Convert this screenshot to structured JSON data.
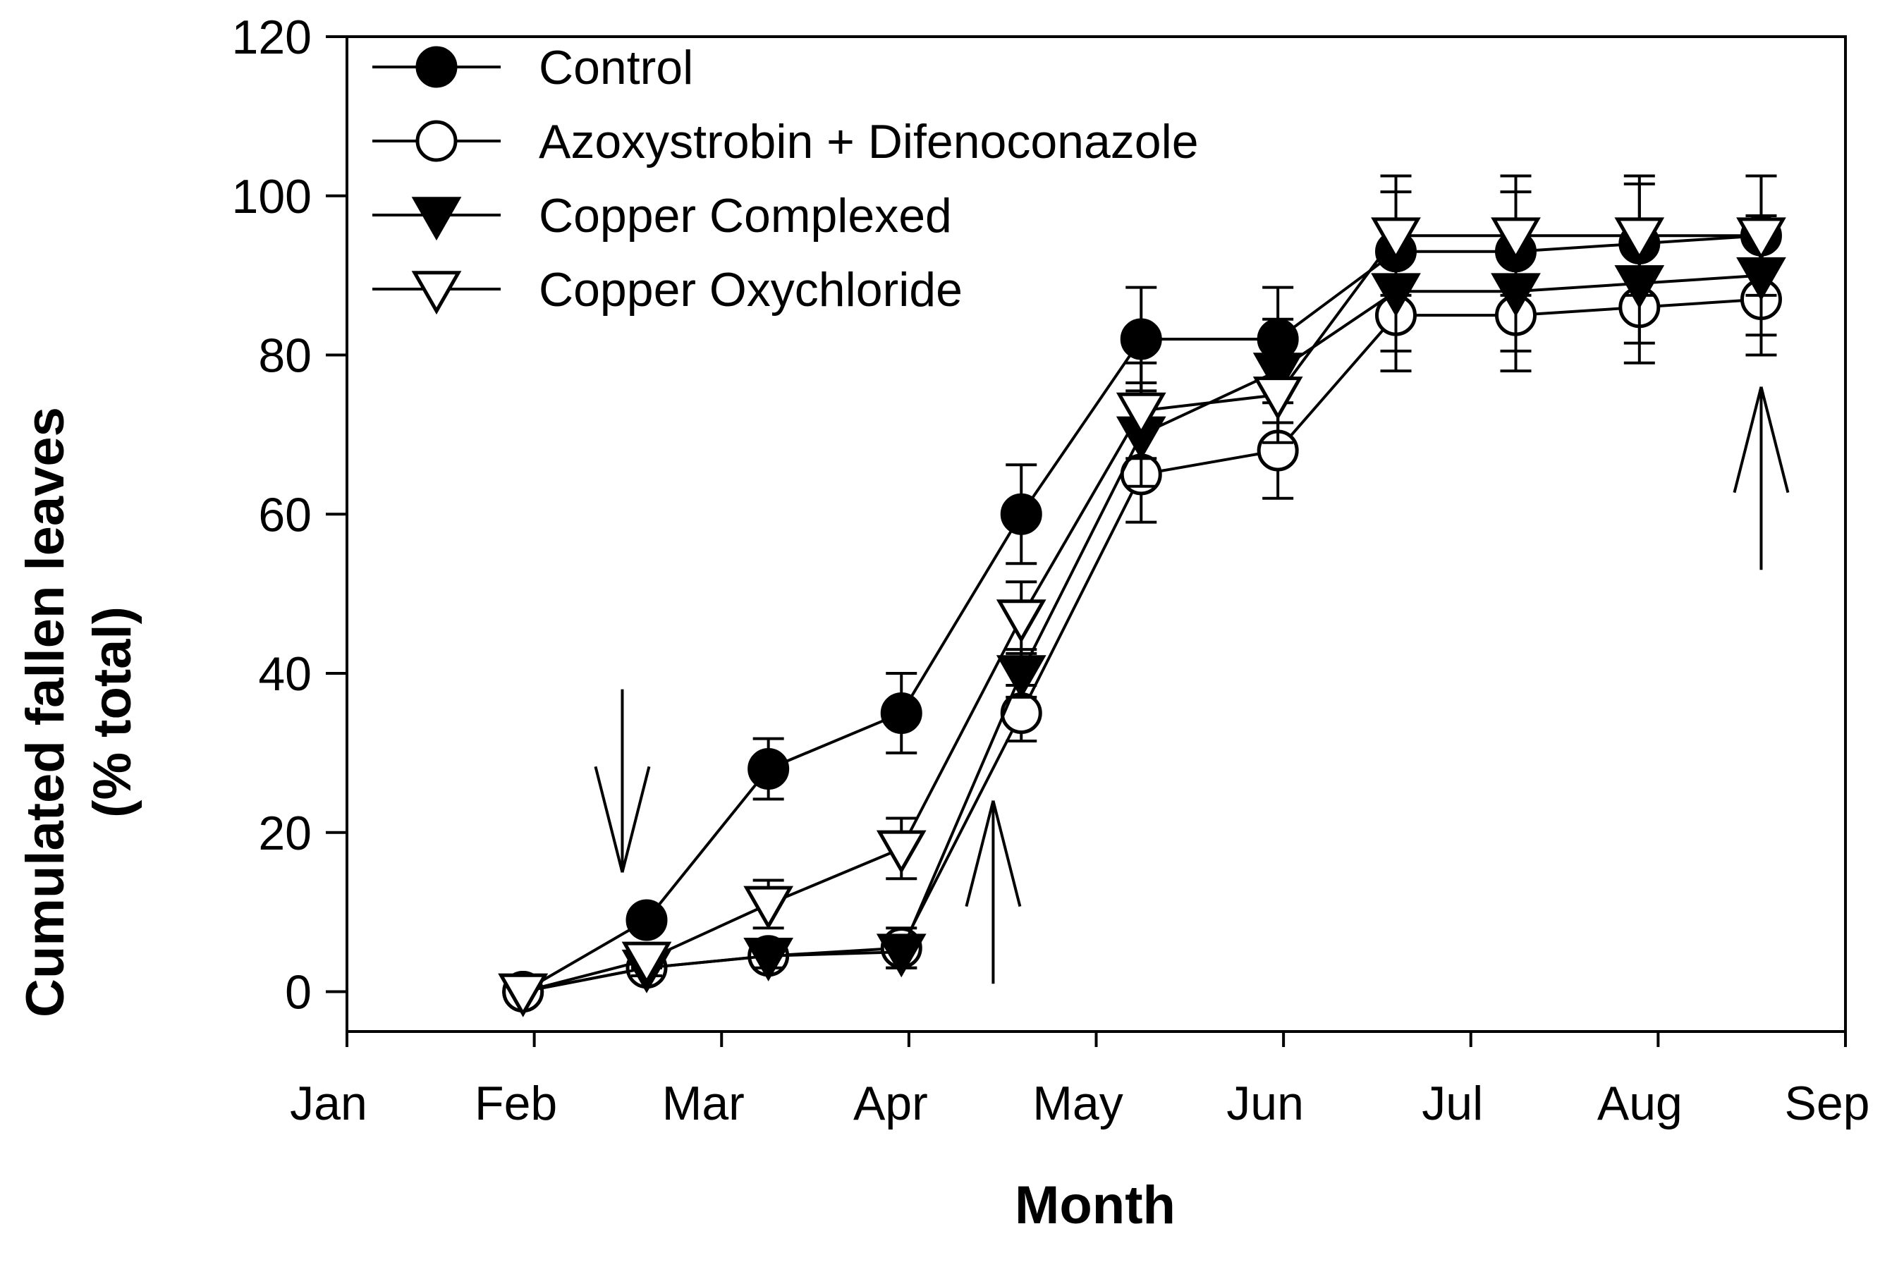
{
  "chart_data": {
    "type": "line",
    "title": "",
    "xlabel": "Month",
    "ylabel": [
      "Cumulated fallen leaves",
      "(% total)"
    ],
    "xlim": [
      0,
      8
    ],
    "ylim": [
      -5,
      120
    ],
    "x_ticks": [
      0,
      1,
      2,
      3,
      4,
      5,
      6,
      7,
      8
    ],
    "x_tick_labels": [
      "Jan",
      "Feb",
      "Mar",
      "Apr",
      "May",
      "Jun",
      "Jul",
      "Aug",
      "Sep"
    ],
    "y_ticks": [
      0,
      20,
      40,
      60,
      80,
      100,
      120
    ],
    "y_tick_labels": [
      "0",
      "20",
      "40",
      "60",
      "80",
      "100",
      "120"
    ],
    "grid": false,
    "legend_position": "top-left",
    "series": [
      {
        "name": "Control",
        "marker": "filled-circle",
        "x": [
          0.94,
          1.6,
          2.25,
          2.96,
          3.6,
          4.24,
          4.97,
          5.6,
          6.24,
          6.9,
          7.55
        ],
        "y": [
          0,
          9,
          28,
          35,
          60,
          82,
          82,
          93,
          93,
          94,
          95
        ],
        "err": [
          0,
          1.5,
          3.8,
          5,
          6.2,
          6.5,
          6.5,
          7.5,
          7.5,
          7.5,
          7.5
        ]
      },
      {
        "name": "Azoxystrobin + Difenoconazole",
        "marker": "open-circle",
        "x": [
          0.94,
          1.6,
          2.25,
          2.96,
          3.6,
          4.24,
          4.97,
          5.6,
          6.24,
          6.9,
          7.55
        ],
        "y": [
          0,
          3,
          4.5,
          5.5,
          35,
          65,
          68,
          85,
          85,
          86,
          87
        ],
        "err": [
          0,
          1,
          1.5,
          2.5,
          3.5,
          6,
          6,
          7,
          7,
          7,
          7
        ]
      },
      {
        "name": "Copper Complexed",
        "marker": "filled-triangle-down",
        "x": [
          0.94,
          1.6,
          2.25,
          2.96,
          3.6,
          4.24,
          4.97,
          5.6,
          6.24,
          6.9,
          7.55
        ],
        "y": [
          0,
          3,
          4.5,
          5,
          40,
          70,
          78,
          88,
          88,
          89,
          90
        ],
        "err": [
          0,
          1,
          1.5,
          2,
          3,
          6.5,
          6.5,
          7.5,
          7.5,
          7.5,
          7.5
        ]
      },
      {
        "name": "Copper Oxychloride",
        "marker": "open-triangle-down",
        "x": [
          0.94,
          1.6,
          2.25,
          2.96,
          3.6,
          4.24,
          4.97,
          5.6,
          6.24,
          6.9,
          7.55
        ],
        "y": [
          0,
          4,
          11,
          18,
          47,
          73,
          75,
          95,
          95,
          95,
          95
        ],
        "err": [
          0,
          1,
          3,
          3.8,
          4.5,
          6,
          6,
          7.5,
          7.5,
          7.5,
          7.5
        ]
      }
    ],
    "annotations": [
      {
        "type": "arrow",
        "direction": "down",
        "x": 1.47,
        "y_from": 38,
        "y_to": 15
      },
      {
        "type": "arrow",
        "direction": "up",
        "x": 3.45,
        "y_from": 1,
        "y_to": 24
      },
      {
        "type": "arrow",
        "direction": "up",
        "x": 7.55,
        "y_from": 53,
        "y_to": 76
      }
    ]
  }
}
